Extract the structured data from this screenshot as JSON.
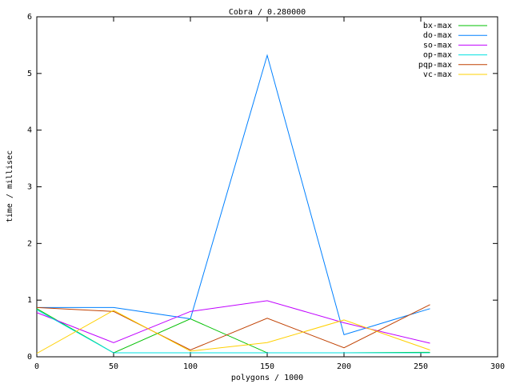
{
  "chart_data": {
    "type": "line",
    "title": "Cobra / 0.280000",
    "x_label": "polygons / 1000",
    "y_label": "time / millisec",
    "x": [
      0,
      50,
      100,
      150,
      200,
      256
    ],
    "xlim": [
      0,
      300
    ],
    "xticks": [
      0,
      50,
      100,
      150,
      200,
      250,
      300
    ],
    "ylim": [
      0,
      6
    ],
    "yticks": [
      0,
      1,
      2,
      3,
      4,
      5,
      6
    ],
    "legend": "top-right",
    "series": [
      {
        "name": "bx-max",
        "color": "#00c000",
        "values": [
          0.85,
          0.07,
          0.67,
          0.07,
          0.07,
          0.08
        ]
      },
      {
        "name": "do-max",
        "color": "#0080ff",
        "values": [
          0.87,
          0.87,
          0.67,
          5.32,
          0.39,
          0.85
        ]
      },
      {
        "name": "so-max",
        "color": "#c000ff",
        "values": [
          0.78,
          0.25,
          0.8,
          0.99,
          0.6,
          0.24
        ]
      },
      {
        "name": "op-max",
        "color": "#00e0e0",
        "values": [
          0.83,
          0.07,
          0.07,
          0.07,
          0.07,
          0.07
        ]
      },
      {
        "name": "pqp-max",
        "color": "#c04000",
        "values": [
          0.87,
          0.8,
          0.12,
          0.68,
          0.16,
          0.92
        ]
      },
      {
        "name": "vc-max",
        "color": "#ffd000",
        "values": [
          0.06,
          0.82,
          0.1,
          0.25,
          0.65,
          0.12
        ]
      }
    ]
  }
}
